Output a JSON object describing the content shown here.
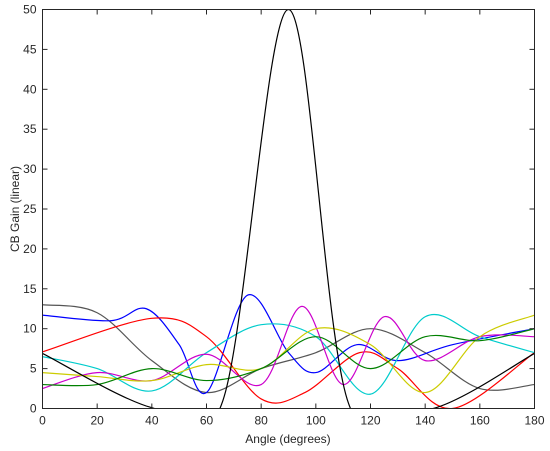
{
  "chart_data": {
    "type": "line",
    "title": "",
    "xlabel": "Angle (degrees)",
    "ylabel": "CB Gain (linear)",
    "xlim": [
      0,
      180
    ],
    "ylim": [
      0,
      50
    ],
    "xticks": [
      0,
      20,
      40,
      60,
      80,
      100,
      120,
      140,
      160,
      180
    ],
    "yticks": [
      0,
      5,
      10,
      15,
      20,
      25,
      30,
      35,
      40,
      45,
      50
    ],
    "grid": false,
    "legend": "none",
    "series": [
      {
        "color": "#000000",
        "x": [
          0,
          40,
          66,
          90,
          112,
          143,
          180
        ],
        "y": [
          6.9,
          0.1,
          1,
          50,
          0.6,
          0,
          6.9
        ]
      },
      {
        "color": "#555555",
        "x": [
          0,
          20,
          40,
          60,
          80,
          100,
          120,
          140,
          160,
          180
        ],
        "y": [
          13,
          12,
          6,
          2,
          5,
          7,
          10,
          7,
          2.5,
          3
        ]
      },
      {
        "color": "#0000ff",
        "x": [
          0,
          25,
          38,
          50,
          60,
          75,
          90,
          100,
          115,
          130,
          150,
          180
        ],
        "y": [
          11.7,
          11,
          12.5,
          8,
          2,
          14.2,
          7,
          4.5,
          8,
          6,
          8,
          10
        ]
      },
      {
        "color": "#ff0000",
        "x": [
          0,
          40,
          60,
          80,
          96,
          116,
          130,
          150,
          180
        ],
        "y": [
          7.1,
          11.3,
          9,
          1.2,
          2,
          7,
          5,
          0,
          7
        ]
      },
      {
        "color": "#00cccc",
        "x": [
          0,
          20,
          40,
          60,
          80,
          100,
          120,
          140,
          160,
          180
        ],
        "y": [
          6.5,
          5,
          2.2,
          7,
          10.5,
          9,
          1.8,
          11.5,
          9,
          7
        ]
      },
      {
        "color": "#cc00cc",
        "x": [
          0,
          20,
          40,
          60,
          80,
          95,
          110,
          125,
          140,
          160,
          180
        ],
        "y": [
          2.5,
          4.5,
          3.5,
          6.8,
          3,
          12.8,
          3,
          11.5,
          6,
          9,
          9
        ]
      },
      {
        "color": "#cccc00",
        "x": [
          0,
          20,
          40,
          60,
          80,
          100,
          120,
          140,
          160,
          180
        ],
        "y": [
          4.5,
          4,
          3.5,
          5.5,
          5,
          10,
          8,
          2,
          9,
          11.7
        ]
      },
      {
        "color": "#008000",
        "x": [
          0,
          20,
          40,
          60,
          80,
          100,
          120,
          140,
          160,
          180
        ],
        "y": [
          3,
          3,
          5,
          3.5,
          5,
          9,
          5,
          9,
          8.5,
          10
        ]
      }
    ]
  }
}
